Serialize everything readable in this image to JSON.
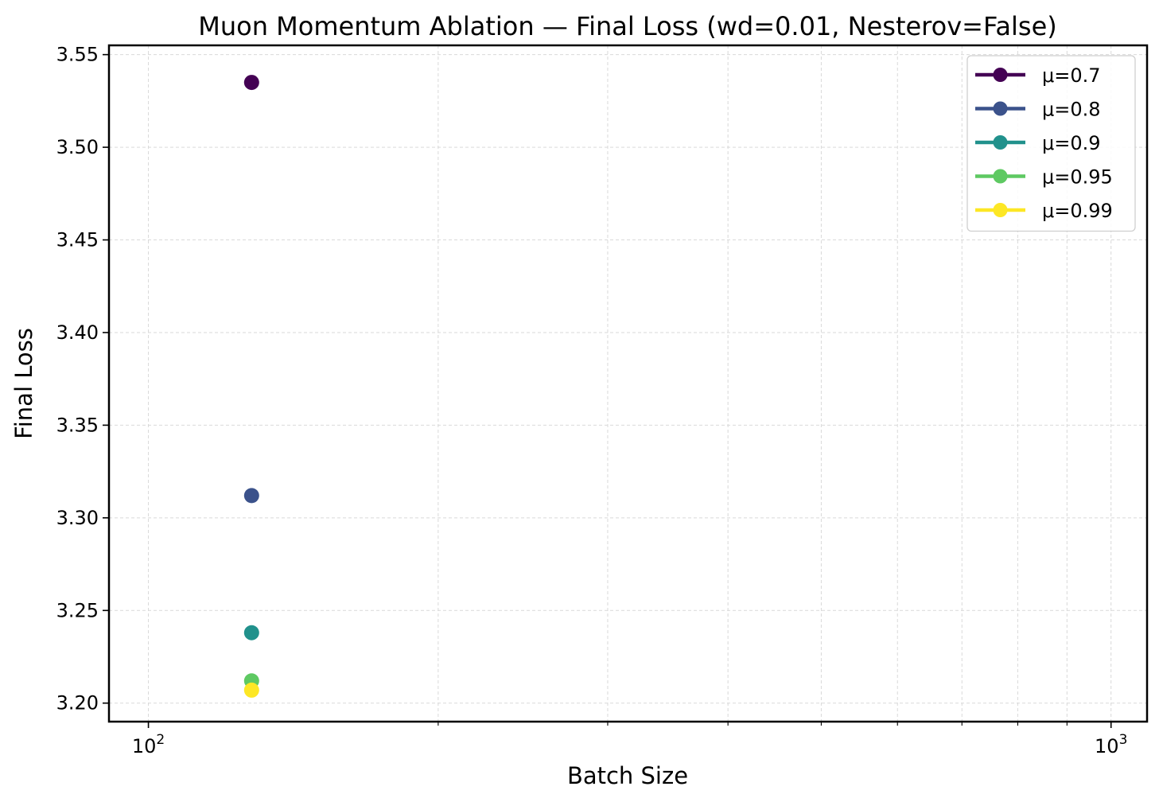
{
  "chart_data": {
    "type": "scatter",
    "title": "Muon Momentum Ablation — Final Loss  (wd=0.01, Nesterov=False)",
    "xlabel": "Batch Size",
    "ylabel": "Final Loss",
    "xscale": "log",
    "xlim": [
      91,
      1090
    ],
    "ylim": [
      3.19,
      3.555
    ],
    "x_tick_labels": [
      {
        "value": 100,
        "base": "10",
        "exp": "2"
      },
      {
        "value": 1000,
        "base": "10",
        "exp": "3"
      }
    ],
    "y_ticks": [
      3.2,
      3.25,
      3.3,
      3.35,
      3.4,
      3.45,
      3.5,
      3.55
    ],
    "y_tick_labels": [
      "3.20",
      "3.25",
      "3.30",
      "3.35",
      "3.40",
      "3.45",
      "3.50",
      "3.55"
    ],
    "grid": true,
    "legend_position": "top-right",
    "series": [
      {
        "name": "μ=0.7",
        "color": "#440154",
        "points": [
          {
            "x": 128,
            "y": 3.535
          }
        ]
      },
      {
        "name": "μ=0.8",
        "color": "#3b528b",
        "points": [
          {
            "x": 128,
            "y": 3.312
          }
        ]
      },
      {
        "name": "μ=0.9",
        "color": "#21918c",
        "points": [
          {
            "x": 128,
            "y": 3.238
          }
        ]
      },
      {
        "name": "μ=0.95",
        "color": "#5ec962",
        "points": [
          {
            "x": 128,
            "y": 3.212
          }
        ]
      },
      {
        "name": "μ=0.99",
        "color": "#fde725",
        "points": [
          {
            "x": 128,
            "y": 3.207
          }
        ]
      }
    ]
  }
}
